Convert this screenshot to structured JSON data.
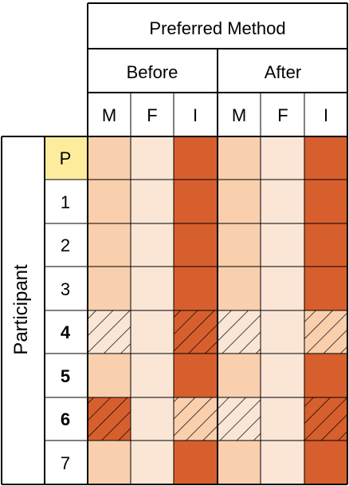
{
  "header": {
    "title": "Preferred Method",
    "groups": [
      "Before",
      "After"
    ],
    "columns": [
      "M",
      "F",
      "I",
      "M",
      "F",
      "I"
    ]
  },
  "side_label": "Participant",
  "colors": {
    "light": "#f9cfae",
    "pale": "#fbe6d6",
    "dark": "#d75f2d",
    "highlight": "#fcec9c",
    "grid": "#000000"
  },
  "rows": [
    {
      "label": "P",
      "bold": false,
      "highlight": true,
      "cells": [
        "light",
        "pale",
        "dark",
        "light",
        "pale",
        "dark"
      ]
    },
    {
      "label": "1",
      "bold": false,
      "highlight": false,
      "cells": [
        "light",
        "pale",
        "dark",
        "light",
        "pale",
        "dark"
      ]
    },
    {
      "label": "2",
      "bold": false,
      "highlight": false,
      "cells": [
        "light",
        "pale",
        "dark",
        "light",
        "pale",
        "dark"
      ]
    },
    {
      "label": "3",
      "bold": false,
      "highlight": false,
      "cells": [
        "light",
        "pale",
        "dark",
        "light",
        "pale",
        "dark"
      ]
    },
    {
      "label": "4",
      "bold": true,
      "highlight": false,
      "cells": [
        "pale",
        "pale",
        "dark",
        "pale",
        "pale",
        "light"
      ],
      "hatched": [
        0,
        2,
        3,
        5
      ]
    },
    {
      "label": "5",
      "bold": true,
      "highlight": false,
      "cells": [
        "light",
        "pale",
        "dark",
        "light",
        "pale",
        "dark"
      ]
    },
    {
      "label": "6",
      "bold": true,
      "highlight": false,
      "cells": [
        "dark",
        "pale",
        "light",
        "pale",
        "pale",
        "dark"
      ],
      "hatched": [
        0,
        2,
        3,
        5
      ]
    },
    {
      "label": "7",
      "bold": false,
      "highlight": false,
      "cells": [
        "light",
        "pale",
        "dark",
        "light",
        "pale",
        "dark"
      ]
    }
  ]
}
